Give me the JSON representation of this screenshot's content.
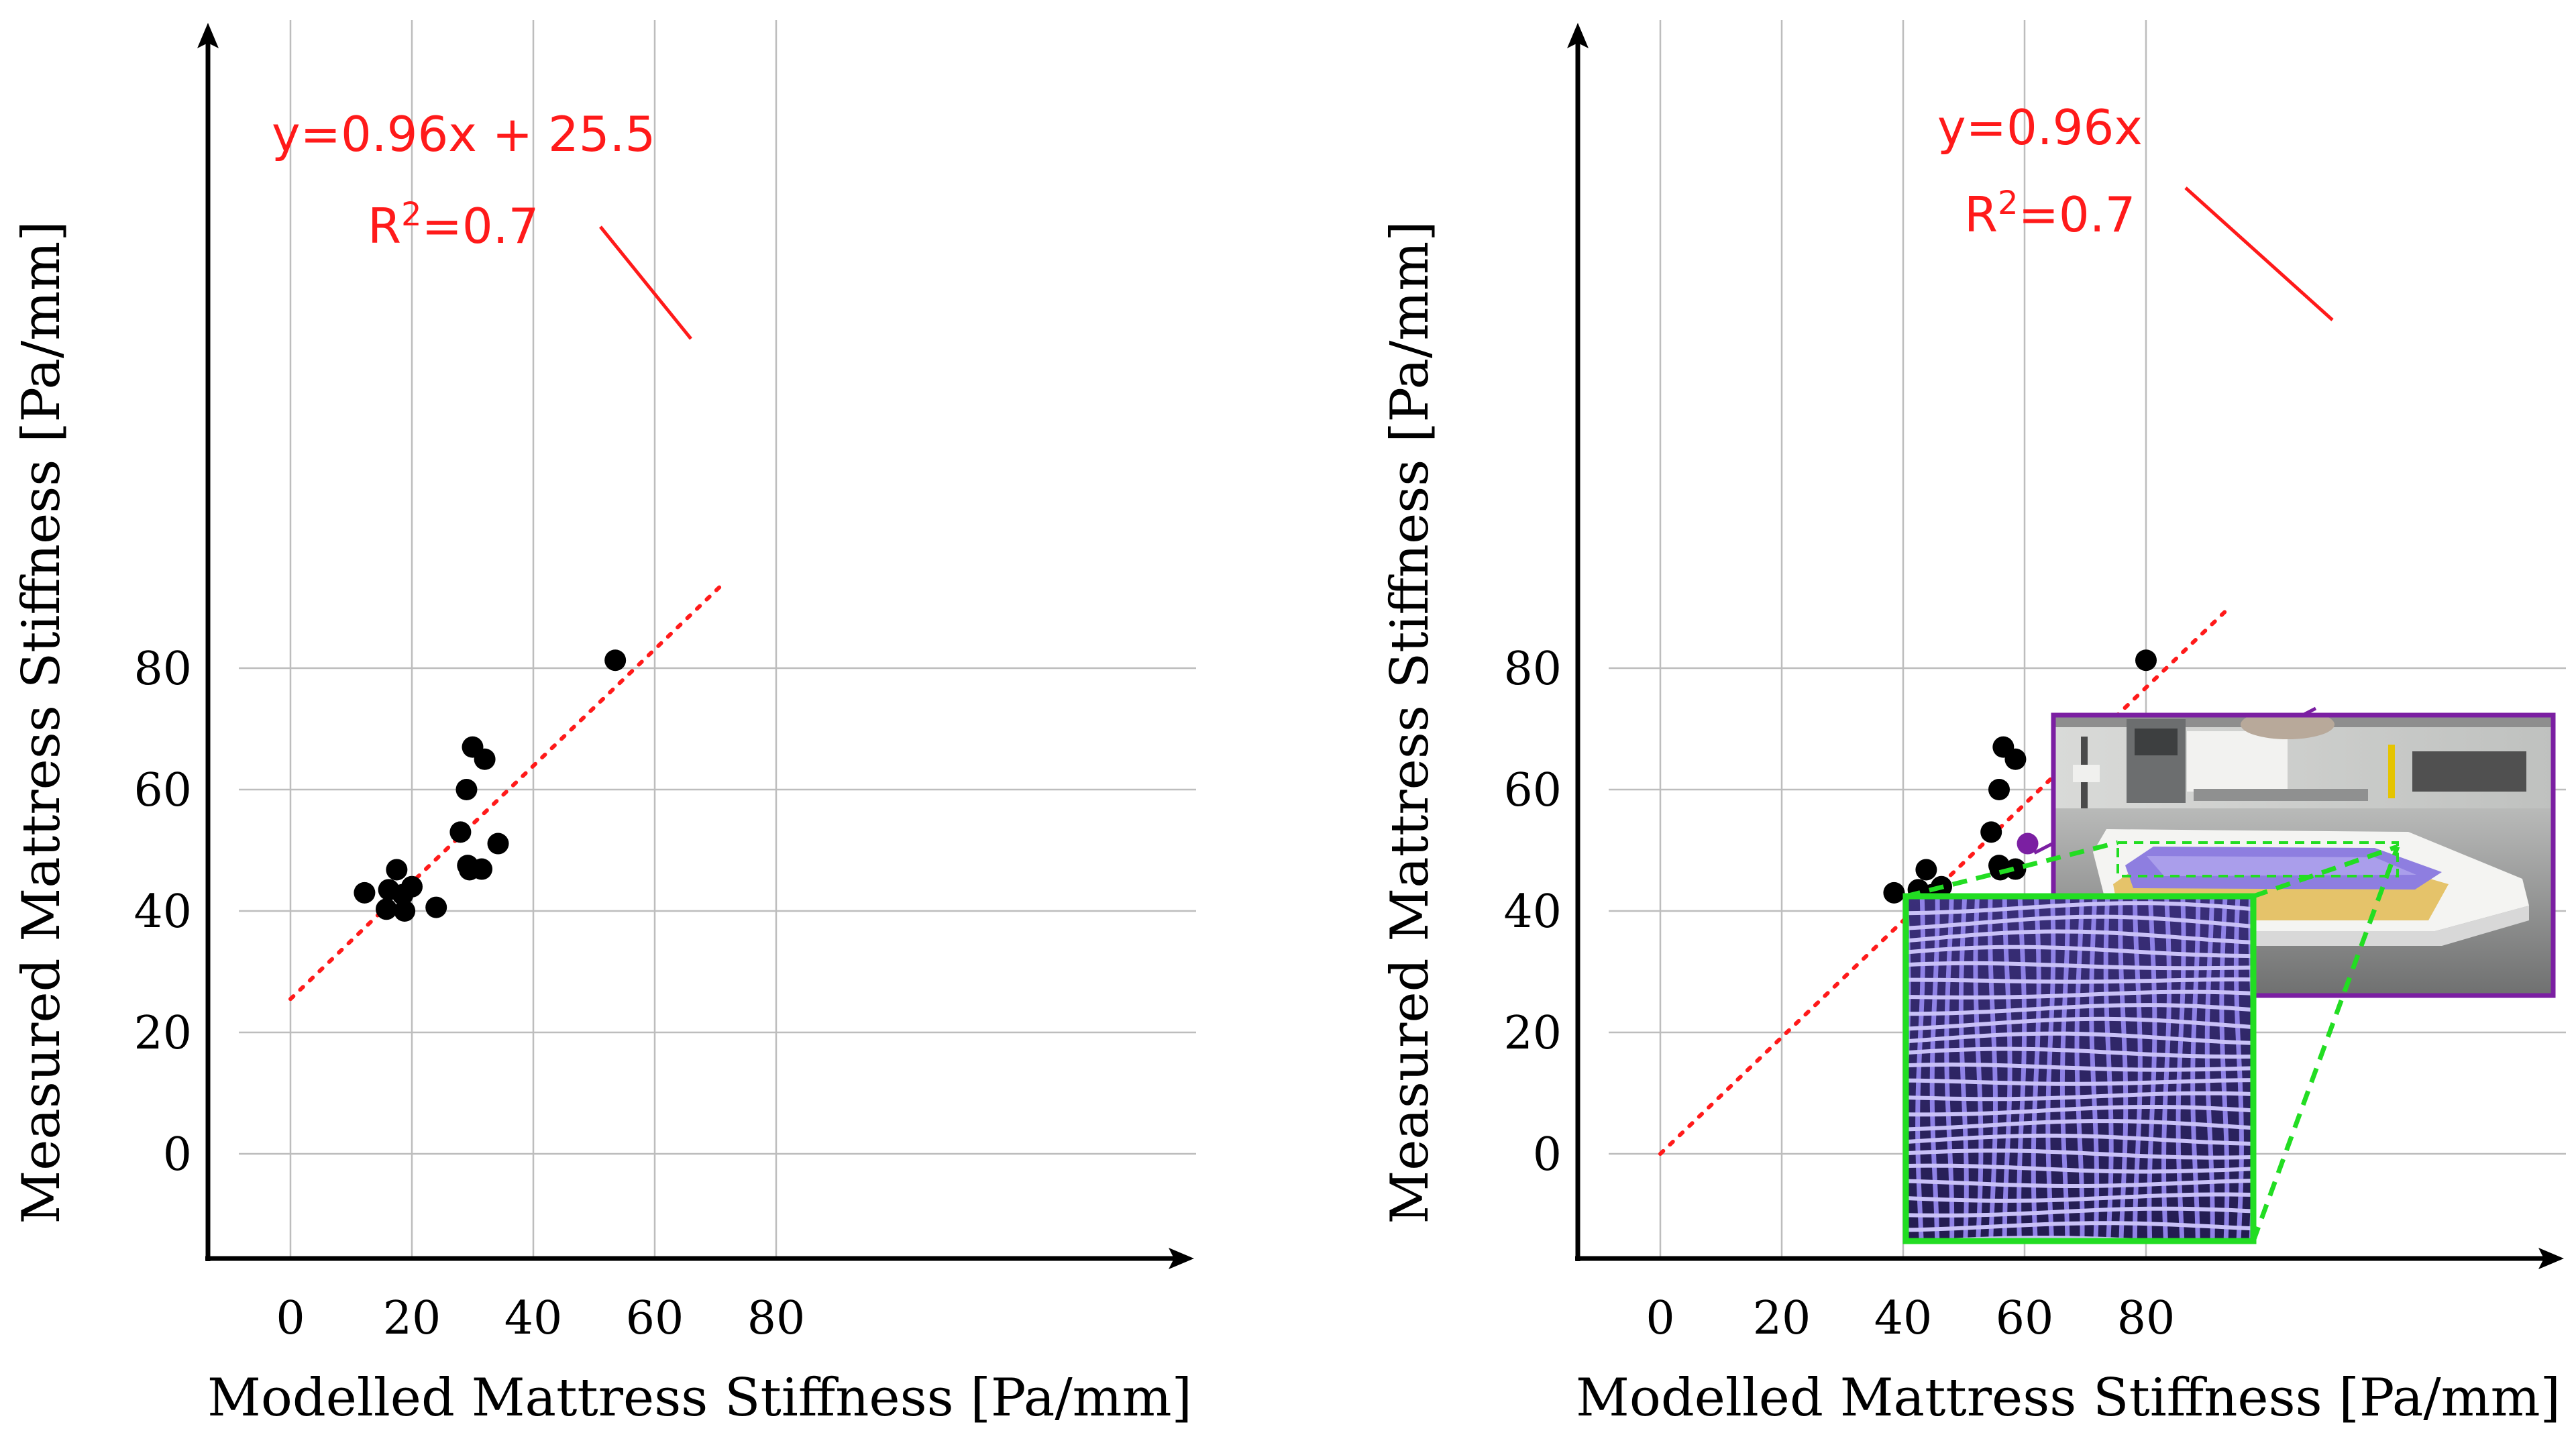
{
  "colors": {
    "fit_line": "#ff1a1a",
    "points": "#000000",
    "highlight_point": "#7b1fa2",
    "inset_frame": "#7b1fa2",
    "zoom_frame": "#22dd22",
    "lattice": "#8f82e6"
  },
  "chart_data": [
    {
      "type": "scatter",
      "title": "",
      "xlabel": "Modelled Mattress Stiffness [Pa/mm]",
      "ylabel": "Measured Mattress Stiffness [Pa/mm]",
      "xlim": [
        -8.5,
        93
      ],
      "ylim": [
        -8.5,
        93
      ],
      "xticks": [
        0,
        20,
        40,
        60,
        80
      ],
      "yticks": [
        0,
        20,
        40,
        60,
        80
      ],
      "grid": true,
      "annotation": {
        "equation": "y=0.96x + 25.5",
        "r2_prefix": "R",
        "r2_sup": "2",
        "r2_suffix": "=0.7"
      },
      "fit": {
        "slope": 0.96,
        "intercept": 25.5,
        "x_range": [
          0,
          71
        ]
      },
      "points": [
        {
          "x": 12.2,
          "y": 43.0
        },
        {
          "x": 15.8,
          "y": 40.3
        },
        {
          "x": 16.2,
          "y": 43.5
        },
        {
          "x": 17.5,
          "y": 46.8
        },
        {
          "x": 18.5,
          "y": 42.7
        },
        {
          "x": 18.8,
          "y": 40.0
        },
        {
          "x": 20.0,
          "y": 44.0
        },
        {
          "x": 24.0,
          "y": 40.6
        },
        {
          "x": 28.0,
          "y": 53.0
        },
        {
          "x": 29.0,
          "y": 60.0
        },
        {
          "x": 29.2,
          "y": 47.5
        },
        {
          "x": 29.5,
          "y": 46.8
        },
        {
          "x": 30.0,
          "y": 67.0
        },
        {
          "x": 31.5,
          "y": 46.9
        },
        {
          "x": 32.0,
          "y": 65.0
        },
        {
          "x": 34.2,
          "y": 51.1
        },
        {
          "x": 53.5,
          "y": 81.3
        }
      ]
    },
    {
      "type": "scatter",
      "title": "",
      "xlabel": "Modelled Mattress Stiffness [Pa/mm]",
      "ylabel": "Measured Mattress Stiffness [Pa/mm]",
      "xlim": [
        -8.5,
        93
      ],
      "ylim": [
        -8.5,
        93
      ],
      "xticks": [
        0,
        20,
        40,
        60,
        80
      ],
      "yticks": [
        0,
        20,
        40,
        60,
        80
      ],
      "grid": true,
      "annotation": {
        "equation": "y=0.96x",
        "r2_prefix": "R",
        "r2_sup": "2",
        "r2_suffix": "=0.7"
      },
      "fit": {
        "slope": 0.96,
        "intercept": 0,
        "x_range": [
          0,
          93
        ]
      },
      "points": [
        {
          "x": 38.5,
          "y": 43.0
        },
        {
          "x": 42.2,
          "y": 40.3
        },
        {
          "x": 42.5,
          "y": 43.5
        },
        {
          "x": 43.8,
          "y": 46.8
        },
        {
          "x": 44.8,
          "y": 42.7
        },
        {
          "x": 45.0,
          "y": 40.0
        },
        {
          "x": 46.3,
          "y": 44.0
        },
        {
          "x": 50.5,
          "y": 40.6
        },
        {
          "x": 54.5,
          "y": 53.0
        },
        {
          "x": 55.8,
          "y": 60.0
        },
        {
          "x": 55.8,
          "y": 47.5
        },
        {
          "x": 56.0,
          "y": 46.8
        },
        {
          "x": 56.5,
          "y": 67.0
        },
        {
          "x": 58.5,
          "y": 46.9
        },
        {
          "x": 58.5,
          "y": 65.0
        },
        {
          "x": 80.0,
          "y": 81.3
        }
      ],
      "highlight_point": {
        "x": 60.5,
        "y": 51.1
      }
    }
  ]
}
